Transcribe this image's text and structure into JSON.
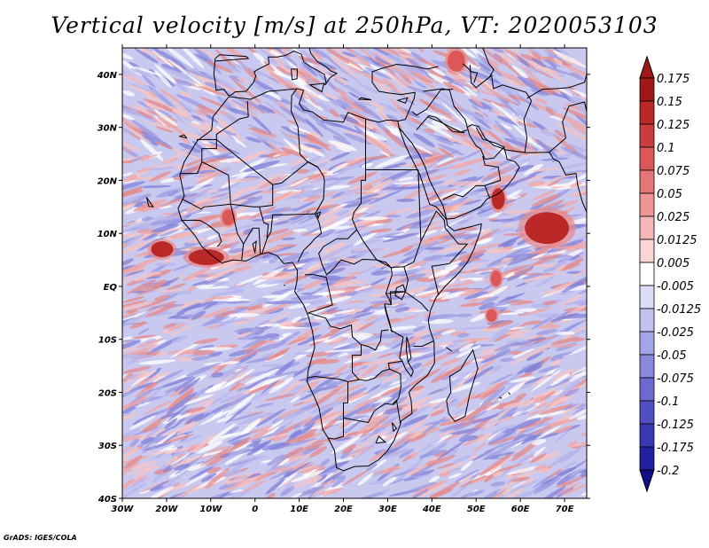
{
  "map": {
    "title": "Vertical velocity [m/s] at 250hPa, VT: 2020053103",
    "variable": "Vertical velocity",
    "units": "m/s",
    "level": "250hPa",
    "valid_time": "2020053103",
    "lon_labels": [
      "30W",
      "20W",
      "10W",
      "0",
      "10E",
      "20E",
      "30E",
      "40E",
      "50E",
      "60E",
      "70E"
    ],
    "lat_labels": [
      "40N",
      "30N",
      "20N",
      "10N",
      "EQ",
      "10S",
      "20S",
      "30S",
      "40S"
    ],
    "lon_range": [
      -30,
      75
    ],
    "lat_range": [
      -40,
      45
    ],
    "ocean_blobs": [
      {
        "lon": 66,
        "lat": 11,
        "value": 0.17,
        "rlon": 5,
        "rlat": 3
      },
      {
        "lon": -21,
        "lat": 7,
        "value": 0.15,
        "rlon": 2.5,
        "rlat": 1.5
      },
      {
        "lon": -11,
        "lat": 5.5,
        "value": 0.16,
        "rlon": 4,
        "rlat": 1.5
      },
      {
        "lon": 55,
        "lat": 16.5,
        "value": 0.15,
        "rlon": 1.5,
        "rlat": 2
      },
      {
        "lon": 54.5,
        "lat": 1.5,
        "value": 0.12,
        "rlon": 1.2,
        "rlat": 1.5
      },
      {
        "lon": 53.5,
        "lat": -5.5,
        "value": 0.1,
        "rlon": 1.2,
        "rlat": 1.2
      },
      {
        "lon": -6,
        "lat": 13,
        "value": 0.12,
        "rlon": 1.5,
        "rlat": 1.5
      },
      {
        "lon": 45.5,
        "lat": 42.5,
        "value": 0.12,
        "rlon": 2,
        "rlat": 2
      }
    ]
  },
  "colorbar": {
    "labels": [
      "0.175",
      "0.15",
      "0.125",
      "0.1",
      "0.075",
      "0.05",
      "0.025",
      "0.0125",
      "0.005",
      "-0.005",
      "-0.0125",
      "-0.025",
      "-0.05",
      "-0.075",
      "-0.1",
      "-0.125",
      "-0.175",
      "-0.2"
    ],
    "colors": [
      "#a01818",
      "#bb2828",
      "#cc3c3c",
      "#dc5858",
      "#e57676",
      "#ee9696",
      "#f4b6b6",
      "#f9d6d6",
      "#ffffff",
      "#dcdcf7",
      "#c2c2f0",
      "#a4a4e8",
      "#8888dc",
      "#6a6ad0",
      "#5050c4",
      "#3838b4",
      "#2020a0",
      "#10108a"
    ]
  },
  "footer": "GrADS: IGES/COLA"
}
